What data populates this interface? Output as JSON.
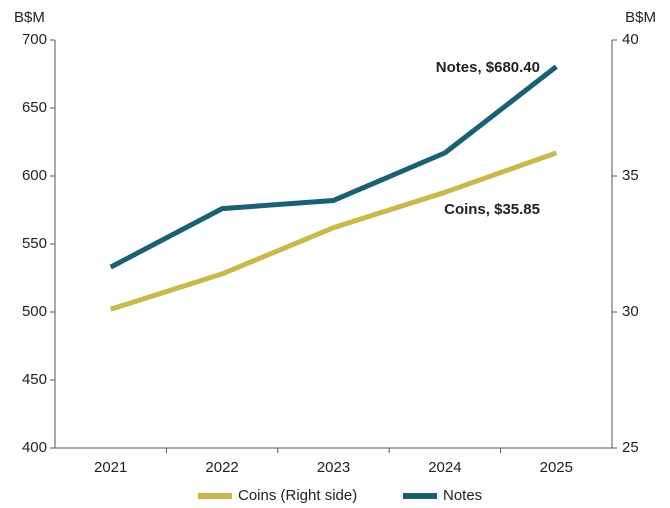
{
  "chart_data": {
    "type": "line",
    "y_label": "B$M",
    "y2_label": "B$M",
    "categories": [
      "2021",
      "2022",
      "2023",
      "2024",
      "2025"
    ],
    "series": [
      {
        "name": "Coins (Right side)",
        "color": "#c9b84a",
        "axis": "y2",
        "values": [
          30.1,
          31.4,
          33.1,
          34.4,
          35.85
        ]
      },
      {
        "name": "Notes",
        "color": "#1a5f73",
        "values": [
          533,
          576,
          582,
          617,
          680.4
        ]
      }
    ],
    "annotations": [
      "Notes, $680.40",
      "Coins, $35.85"
    ],
    "ylim": [
      400,
      700
    ],
    "yticks": [
      400,
      450,
      500,
      550,
      600,
      650,
      700
    ],
    "y2lim": [
      25,
      40
    ],
    "y2ticks": [
      25,
      30,
      35,
      40
    ],
    "legend": "bottom"
  }
}
